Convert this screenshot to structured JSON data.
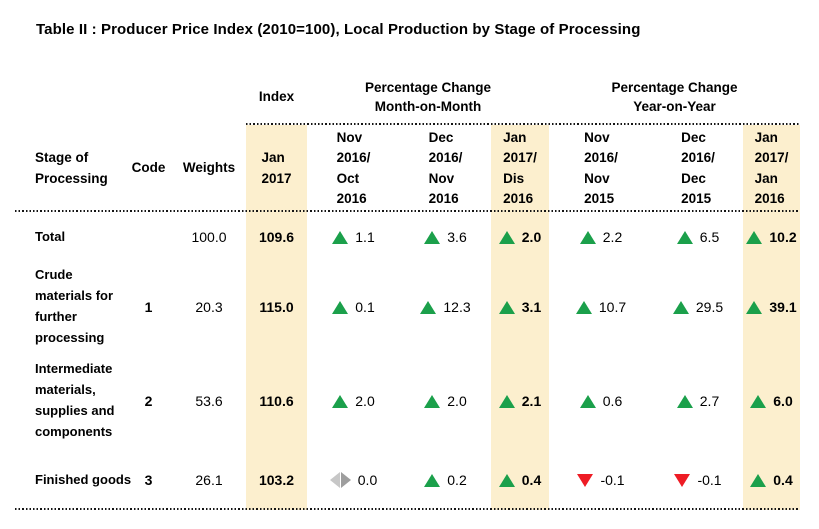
{
  "title": "Table II : Producer Price Index (2010=100), Local Production by Stage of Processing",
  "table": {
    "group_headers": {
      "index": "Index",
      "mom": [
        "Percentage Change",
        "Month-on-Month"
      ],
      "yoy": [
        "Percentage Change",
        "Year-on-Year"
      ]
    },
    "col_headers": {
      "stage": [
        "Stage of",
        "Processing"
      ],
      "code": "Code",
      "weights": "Weights",
      "index_period": [
        "Jan",
        "2017"
      ],
      "mom_periods": [
        [
          "Nov",
          "2016/",
          "Oct",
          "2016"
        ],
        [
          "Dec",
          "2016/",
          "Nov",
          "2016"
        ],
        [
          "Jan",
          "2017/",
          "Dis",
          "2016"
        ]
      ],
      "yoy_periods": [
        [
          "Nov",
          "2016/",
          "Nov",
          "2015"
        ],
        [
          "Dec",
          "2016/",
          "Dec",
          "2015"
        ],
        [
          "Jan",
          "2017/",
          "Jan",
          "2016"
        ]
      ]
    },
    "rows": [
      {
        "stage": [
          "Total"
        ],
        "code": "",
        "weights": "100.0",
        "index": "109.6",
        "mom": [
          {
            "dir": "up",
            "value": "1.1"
          },
          {
            "dir": "up",
            "value": "3.6"
          },
          {
            "dir": "up",
            "value": "2.0"
          }
        ],
        "yoy": [
          {
            "dir": "up",
            "value": "2.2"
          },
          {
            "dir": "up",
            "value": "6.5"
          },
          {
            "dir": "up",
            "value": "10.2"
          }
        ]
      },
      {
        "stage": [
          "Crude",
          "materials for",
          "further",
          "processing"
        ],
        "code": "1",
        "weights": "20.3",
        "index": "115.0",
        "mom": [
          {
            "dir": "up",
            "value": "0.1"
          },
          {
            "dir": "up",
            "value": "12.3"
          },
          {
            "dir": "up",
            "value": "3.1"
          }
        ],
        "yoy": [
          {
            "dir": "up",
            "value": "10.7"
          },
          {
            "dir": "up",
            "value": "29.5"
          },
          {
            "dir": "up",
            "value": "39.1"
          }
        ]
      },
      {
        "stage": [
          "Intermediate",
          "materials,",
          "supplies and",
          "components"
        ],
        "code": "2",
        "weights": "53.6",
        "index": "110.6",
        "mom": [
          {
            "dir": "up",
            "value": "2.0"
          },
          {
            "dir": "up",
            "value": "2.0"
          },
          {
            "dir": "up",
            "value": "2.1"
          }
        ],
        "yoy": [
          {
            "dir": "up",
            "value": "0.6"
          },
          {
            "dir": "up",
            "value": "2.7"
          },
          {
            "dir": "up",
            "value": "6.0"
          }
        ]
      },
      {
        "stage": [
          "Finished goods"
        ],
        "code": "3",
        "weights": "26.1",
        "index": "103.2",
        "mom": [
          {
            "dir": "neutral",
            "value": "0.0"
          },
          {
            "dir": "up",
            "value": "0.2"
          },
          {
            "dir": "up",
            "value": "0.4"
          }
        ],
        "yoy": [
          {
            "dir": "down",
            "value": "-0.1"
          },
          {
            "dir": "down",
            "value": "-0.1"
          },
          {
            "dir": "up",
            "value": "0.4"
          }
        ]
      }
    ]
  },
  "icons": {
    "up": "up-triangle-icon",
    "down": "down-triangle-icon",
    "neutral": "no-change-icon"
  },
  "colors": {
    "up_green": "#1ba04b",
    "down_red": "#ee1c25",
    "neutral_gray_light": "#c7c7c7",
    "neutral_gray_dark": "#9e9e9e",
    "highlight_cream": "#fcefce"
  }
}
